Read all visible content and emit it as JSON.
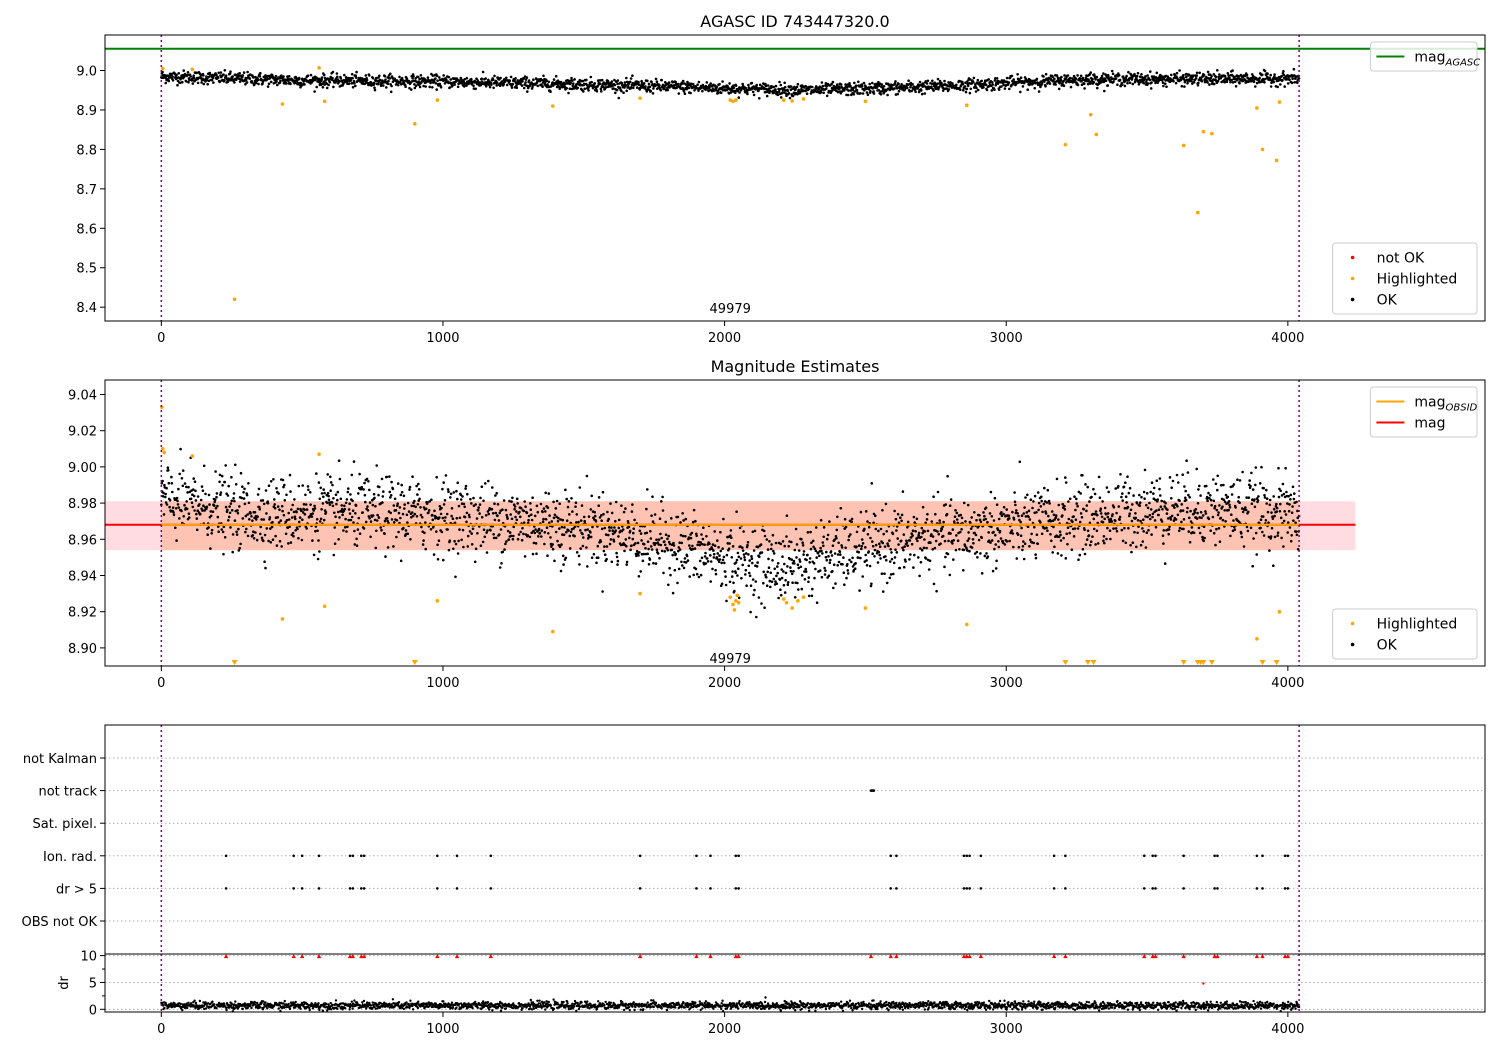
{
  "figure": {
    "title": "AGASC ID 743447320.0",
    "annotation": "49979"
  },
  "colors": {
    "ok": "#000000",
    "highlighted": "#ffa500",
    "not_ok": "#ff0000",
    "mag_agasc": "#008000",
    "mag_obsid": "#ffa500",
    "mag": "#ff0000",
    "obsid_boundary": "#800080",
    "band_orange": "#ffa57a",
    "band_red": "#ffc0cb"
  },
  "chart_data": [
    {
      "type": "scatter",
      "title": "AGASC ID 743447320.0",
      "xlabel": "",
      "ylabel": "",
      "xlim": [
        -200,
        4700
      ],
      "ylim": [
        8.365,
        9.09
      ],
      "xticks": [
        0,
        1000,
        2000,
        3000,
        4000
      ],
      "yticks": [
        8.4,
        8.5,
        8.6,
        8.7,
        8.8,
        8.9,
        9.0
      ],
      "ytick_labels": [
        "8.4",
        "8.5",
        "8.6",
        "8.7",
        "8.8",
        "8.9",
        "9.0"
      ],
      "annotation": {
        "text": "49979",
        "x": 2020,
        "y": 8.4
      },
      "lines": [
        {
          "name": "mag_AGASC",
          "y": 9.055,
          "color": "#008000"
        }
      ],
      "obsid_boundaries": [
        0,
        4040
      ],
      "ok_trend": {
        "x": [
          0,
          500,
          1000,
          1500,
          2000,
          2300,
          2700,
          3000,
          3300,
          3600,
          4040
        ],
        "y": [
          8.985,
          8.975,
          8.972,
          8.965,
          8.955,
          8.95,
          8.958,
          8.968,
          8.978,
          8.978,
          8.98
        ],
        "noise": 0.008
      },
      "highlighted": {
        "x": [
          5,
          110,
          260,
          430,
          560,
          580,
          900,
          980,
          1390,
          1700,
          2020,
          2030,
          2040,
          2210,
          2240,
          2280,
          2500,
          2860,
          3210,
          3300,
          3320,
          3630,
          3680,
          3700,
          3730,
          3890,
          3910,
          3960,
          3970
        ],
        "y": [
          9.005,
          9.003,
          8.42,
          8.915,
          9.007,
          8.922,
          8.865,
          8.925,
          8.91,
          8.93,
          8.925,
          8.922,
          8.925,
          8.925,
          8.923,
          8.928,
          8.922,
          8.912,
          8.812,
          8.888,
          8.838,
          8.81,
          8.64,
          8.845,
          8.84,
          8.905,
          8.8,
          8.772,
          8.92
        ]
      },
      "legends": [
        {
          "position": "top-right",
          "entries": [
            {
              "label": "mag",
              "sub": "AGASC",
              "kind": "line",
              "color": "#008000"
            }
          ]
        },
        {
          "position": "bottom-right",
          "entries": [
            {
              "label": "not OK",
              "kind": "marker",
              "color": "#ff0000"
            },
            {
              "label": "Highlighted",
              "kind": "marker",
              "color": "#ffa500"
            },
            {
              "label": "OK",
              "kind": "marker",
              "color": "#000000"
            }
          ]
        }
      ]
    },
    {
      "type": "scatter",
      "title": "Magnitude Estimates",
      "xlabel": "",
      "ylabel": "",
      "xlim": [
        -200,
        4700
      ],
      "ylim": [
        8.89,
        9.048
      ],
      "xticks": [
        0,
        1000,
        2000,
        3000,
        4000
      ],
      "yticks": [
        8.9,
        8.92,
        8.94,
        8.96,
        8.98,
        9.0,
        9.02,
        9.04
      ],
      "ytick_labels": [
        "8.90",
        "8.92",
        "8.94",
        "8.96",
        "8.98",
        "9.00",
        "9.02",
        "9.04"
      ],
      "annotation": {
        "text": "49979",
        "x": 2020,
        "y": 8.895
      },
      "lines": [
        {
          "name": "mag_OBSID",
          "y": 8.9675,
          "x_range": [
            0,
            4040
          ],
          "color": "#ffa500"
        },
        {
          "name": "mag",
          "y": 8.968,
          "x_range": [
            -200,
            4240
          ],
          "color": "#ff0000"
        }
      ],
      "bands": [
        {
          "name": "mag_OBSID band",
          "y_range": [
            8.954,
            8.981
          ],
          "x_range": [
            0,
            4040
          ],
          "color": "#ffa57a"
        },
        {
          "name": "mag band",
          "y_range": [
            8.954,
            8.981
          ],
          "x_range": [
            -200,
            4240
          ],
          "color": "#ffc0cb"
        }
      ],
      "obsid_boundaries": [
        0,
        4040
      ],
      "ok_trend": {
        "x": [
          0,
          300,
          700,
          1000,
          1500,
          1800,
          2000,
          2200,
          2400,
          2700,
          3000,
          3300,
          3600,
          4040
        ],
        "y": [
          8.982,
          8.974,
          8.975,
          8.973,
          8.967,
          8.958,
          8.95,
          8.945,
          8.952,
          8.96,
          8.966,
          8.972,
          8.978,
          8.974
        ],
        "noise": 0.01
      },
      "highlighted": {
        "x": [
          2,
          5,
          10,
          110,
          430,
          560,
          580,
          980,
          1390,
          1700,
          2020,
          2030,
          2035,
          2040,
          2045,
          2050,
          2210,
          2220,
          2240,
          2260,
          2280,
          2500,
          2860,
          3890,
          3970
        ],
        "y": [
          9.033,
          9.01,
          9.008,
          9.006,
          8.916,
          9.007,
          8.923,
          8.926,
          8.909,
          8.93,
          8.928,
          8.924,
          8.921,
          8.926,
          8.929,
          8.925,
          8.927,
          8.925,
          8.922,
          8.926,
          8.928,
          8.922,
          8.913,
          8.905,
          8.92
        ]
      },
      "below_range_markers": [
        260,
        900,
        3210,
        3290,
        3310,
        3630,
        3680,
        3690,
        3700,
        3730,
        3910,
        3960
      ],
      "legends": [
        {
          "position": "top-right",
          "entries": [
            {
              "label": "mag",
              "sub": "OBSID",
              "kind": "line",
              "color": "#ffa500"
            },
            {
              "label": "mag",
              "kind": "line",
              "color": "#ff0000"
            }
          ]
        },
        {
          "position": "bottom-right",
          "entries": [
            {
              "label": "Highlighted",
              "kind": "marker",
              "color": "#ffa500"
            },
            {
              "label": "OK",
              "kind": "marker",
              "color": "#000000"
            }
          ]
        }
      ]
    },
    {
      "type": "scatter",
      "title": "",
      "xlabel": "",
      "ylabel": "",
      "xlim": [
        -200,
        4700
      ],
      "categories": [
        "OBS not OK",
        "dr > 5",
        "Ion. rad.",
        "Sat. pixel.",
        "not track",
        "not Kalman"
      ],
      "flags": {
        "dr > 5": [
          230,
          470,
          500,
          560,
          670,
          680,
          710,
          720,
          980,
          1050,
          1170,
          1700,
          1900,
          1950,
          2040,
          2050,
          2590,
          2610,
          2850,
          2860,
          2870,
          2910,
          3170,
          3210,
          3490,
          3520,
          3530,
          3630,
          3740,
          3750,
          3890,
          3910,
          3990,
          4000
        ],
        "Ion. rad.": [
          230,
          470,
          500,
          560,
          670,
          680,
          710,
          720,
          980,
          1050,
          1170,
          1700,
          1900,
          1950,
          2040,
          2050,
          2590,
          2610,
          2850,
          2860,
          2870,
          2910,
          3170,
          3210,
          3490,
          3520,
          3530,
          3630,
          3740,
          3750,
          3890,
          3910,
          3990,
          4000
        ],
        "not track": [
          2520,
          2525,
          2530
        ],
        "not Kalman": [],
        "Sat. pixel.": [],
        "OBS not OK": []
      },
      "obsid_boundaries": [
        0,
        4040
      ]
    },
    {
      "type": "scatter",
      "title": "",
      "xlabel": "",
      "ylabel": "dr",
      "xlim": [
        -200,
        4700
      ],
      "ylim": [
        -0.5,
        10.3
      ],
      "yticks": [
        0,
        5,
        10
      ],
      "ytick_labels": [
        "0",
        "5",
        "10"
      ],
      "ok_trend": {
        "x": [
          0,
          4040
        ],
        "y": [
          0.7,
          0.7
        ],
        "noise": 0.35
      },
      "not_ok_triangles": [
        230,
        470,
        500,
        560,
        670,
        680,
        710,
        720,
        980,
        1050,
        1170,
        1700,
        1900,
        1950,
        2040,
        2050,
        2520,
        2590,
        2610,
        2850,
        2860,
        2870,
        2910,
        3170,
        3210,
        3490,
        3520,
        3530,
        3630,
        3740,
        3750,
        3890,
        3910,
        3990,
        4000
      ],
      "not_ok_points": {
        "x": [
          3700
        ],
        "y": [
          4.8
        ]
      },
      "obsid_boundaries": [
        0,
        4040
      ]
    }
  ]
}
